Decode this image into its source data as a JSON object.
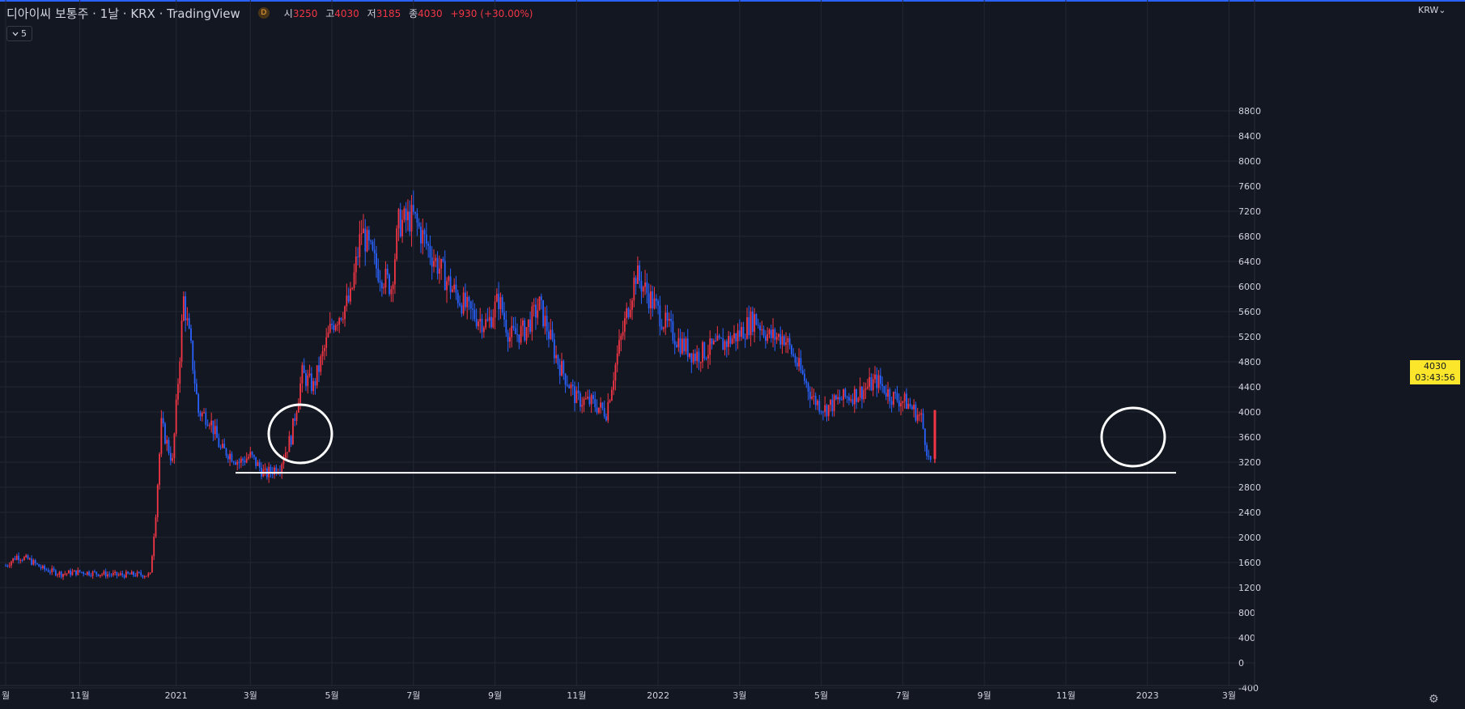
{
  "header": {
    "symbol": "디아이씨 보통주 · 1날 · KRX · TradingView",
    "badge": "D",
    "open_label": "시",
    "open": "3250",
    "high_label": "고",
    "high": "4030",
    "low_label": "저",
    "low": "3185",
    "close_label": "종",
    "close": "4030",
    "change": "+930 (+30.00%)"
  },
  "indicator_toggle": {
    "icon": "chevron-down-icon",
    "count": "5"
  },
  "price_axis": {
    "currency": "KRW"
  },
  "last_price": {
    "price": "4030",
    "countdown": "03:43:56"
  },
  "colors": {
    "up": "#f23645",
    "down": "#2962ff",
    "background": "#131722",
    "grid": "#232733",
    "tag": "#fbe62c"
  },
  "chart_data": {
    "type": "candlestick",
    "title": "",
    "ylim": [
      -400,
      8800
    ],
    "y_ticks": [
      "-400",
      "0",
      "400",
      "800",
      "1200",
      "1600",
      "2000",
      "2400",
      "2800",
      "3200",
      "3600",
      "4000",
      "4400",
      "4800",
      "5200",
      "5600",
      "6000",
      "6400",
      "6800",
      "7200",
      "7600",
      "8000",
      "8400",
      "8800"
    ],
    "x_ticks": [
      "월",
      "11월",
      "2021",
      "3월",
      "5월",
      "7월",
      "9월",
      "11월",
      "2022",
      "3월",
      "5월",
      "7월",
      "9월",
      "11월",
      "2023",
      "3월"
    ],
    "grid": true,
    "series": [
      {
        "points": [
          {
            "t": 0,
            "v": 1550
          },
          {
            "t": 0.3,
            "v": 1700
          },
          {
            "t": 0.6,
            "v": 1650
          },
          {
            "t": 1,
            "v": 1500
          },
          {
            "t": 1.5,
            "v": 1420
          },
          {
            "t": 2,
            "v": 1450
          },
          {
            "t": 2.6,
            "v": 1420
          },
          {
            "t": 3,
            "v": 1400
          },
          {
            "t": 3.5,
            "v": 1410
          },
          {
            "t": 3.9,
            "v": 1400
          },
          {
            "t": 4.05,
            "v": 2400
          },
          {
            "t": 4.2,
            "v": 3800
          },
          {
            "t": 4.5,
            "v": 3200
          },
          {
            "t": 4.8,
            "v": 5800
          },
          {
            "t": 5.0,
            "v": 5000
          },
          {
            "t": 5.2,
            "v": 4000
          },
          {
            "t": 5.5,
            "v": 3900
          },
          {
            "t": 5.8,
            "v": 3400
          },
          {
            "t": 6.0,
            "v": 3350
          },
          {
            "t": 6.3,
            "v": 3200
          },
          {
            "t": 6.6,
            "v": 3300
          },
          {
            "t": 7.0,
            "v": 3000
          },
          {
            "t": 7.4,
            "v": 3150
          },
          {
            "t": 7.7,
            "v": 3600
          },
          {
            "t": 8.0,
            "v": 4600
          },
          {
            "t": 8.3,
            "v": 4400
          },
          {
            "t": 8.8,
            "v": 5400
          },
          {
            "t": 9.3,
            "v": 5800
          },
          {
            "t": 9.6,
            "v": 6900
          },
          {
            "t": 10.0,
            "v": 6300
          },
          {
            "t": 10.4,
            "v": 6000
          },
          {
            "t": 10.6,
            "v": 7000
          },
          {
            "t": 11.0,
            "v": 7100
          },
          {
            "t": 11.5,
            "v": 6500
          },
          {
            "t": 12.0,
            "v": 6000
          },
          {
            "t": 12.5,
            "v": 5600
          },
          {
            "t": 13.0,
            "v": 5400
          },
          {
            "t": 13.3,
            "v": 5800
          },
          {
            "t": 13.6,
            "v": 5200
          },
          {
            "t": 14.0,
            "v": 5300
          },
          {
            "t": 14.4,
            "v": 5700
          },
          {
            "t": 14.9,
            "v": 4800
          },
          {
            "t": 15.4,
            "v": 4200
          },
          {
            "t": 15.8,
            "v": 4150
          },
          {
            "t": 16.2,
            "v": 4000
          },
          {
            "t": 16.5,
            "v": 4900
          },
          {
            "t": 17.0,
            "v": 6200
          },
          {
            "t": 17.4,
            "v": 5800
          },
          {
            "t": 17.8,
            "v": 5400
          },
          {
            "t": 18.2,
            "v": 5100
          },
          {
            "t": 18.6,
            "v": 4900
          },
          {
            "t": 19.0,
            "v": 5000
          },
          {
            "t": 19.4,
            "v": 5100
          },
          {
            "t": 19.8,
            "v": 5250
          },
          {
            "t": 20.2,
            "v": 5500
          },
          {
            "t": 20.6,
            "v": 5200
          },
          {
            "t": 21.0,
            "v": 5200
          },
          {
            "t": 21.4,
            "v": 4700
          },
          {
            "t": 21.8,
            "v": 4200
          },
          {
            "t": 22.1,
            "v": 4050
          },
          {
            "t": 22.5,
            "v": 4200
          },
          {
            "t": 23.0,
            "v": 4300
          },
          {
            "t": 23.5,
            "v": 4500
          },
          {
            "t": 23.9,
            "v": 4250
          },
          {
            "t": 24.3,
            "v": 4150
          },
          {
            "t": 24.7,
            "v": 3900
          },
          {
            "t": 24.9,
            "v": 3250
          },
          {
            "t": 25.0,
            "v": 3200
          }
        ],
        "last_candle": {
          "open": 3250,
          "high": 4030,
          "low": 3185,
          "close": 4030
        }
      }
    ],
    "annotations": [
      {
        "type": "horizontal_line",
        "price": 3030
      },
      {
        "type": "circle",
        "around": "2021-03"
      },
      {
        "type": "circle",
        "around": "2022-10"
      }
    ]
  }
}
